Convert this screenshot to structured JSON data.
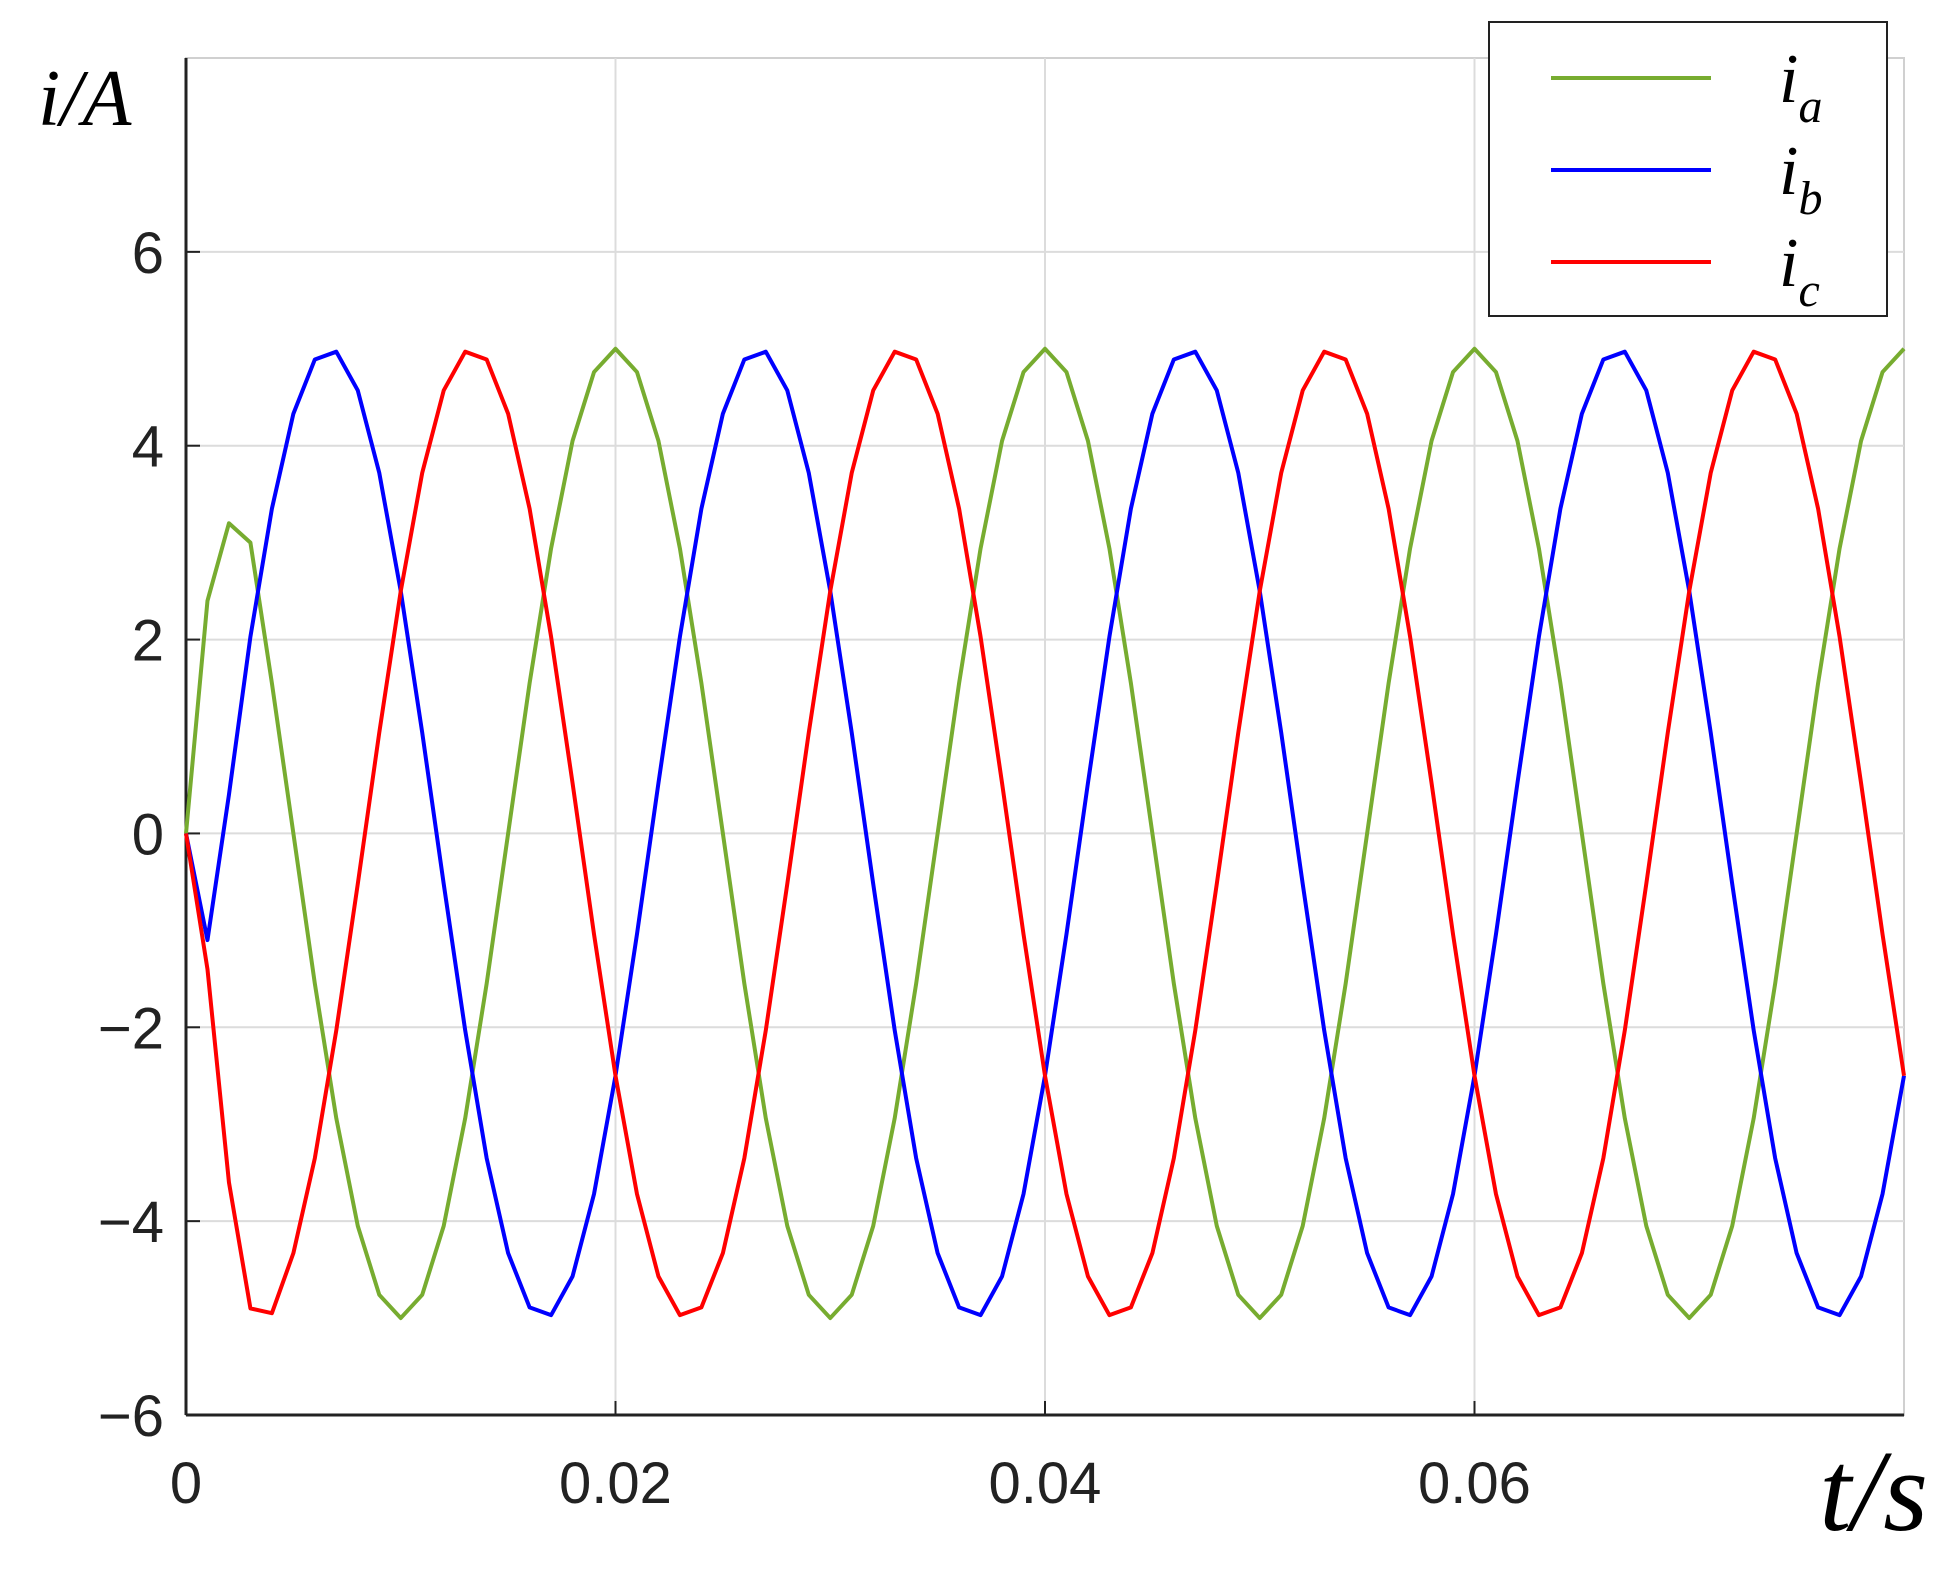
{
  "chart_data": {
    "type": "line",
    "xlabel": "t/s",
    "ylabel": "i/A",
    "x": [
      0,
      0.001,
      0.002,
      0.003,
      0.004,
      0.005,
      0.006,
      0.007,
      0.008,
      0.009,
      0.01,
      0.011,
      0.012,
      0.013,
      0.014,
      0.015,
      0.016,
      0.017,
      0.018,
      0.019,
      0.02,
      0.021,
      0.022,
      0.023,
      0.024,
      0.025,
      0.026,
      0.027,
      0.028,
      0.029,
      0.03,
      0.031,
      0.032,
      0.033,
      0.034,
      0.035,
      0.036,
      0.037,
      0.038,
      0.039,
      0.04,
      0.041,
      0.042,
      0.043,
      0.044,
      0.045,
      0.046,
      0.047,
      0.048,
      0.049,
      0.05,
      0.051,
      0.052,
      0.053,
      0.054,
      0.055,
      0.056,
      0.057,
      0.058,
      0.059,
      0.06,
      0.061,
      0.062,
      0.063,
      0.064,
      0.065,
      0.066,
      0.067,
      0.068,
      0.069,
      0.07,
      0.071,
      0.072,
      0.073,
      0.074,
      0.075,
      0.076,
      0.077,
      0.078,
      0.079,
      0.08
    ],
    "series": [
      {
        "name": "i_a",
        "color": "#77ac30",
        "values": [
          0,
          2.4,
          3.2,
          3.0,
          1.55,
          0,
          -1.55,
          -2.94,
          -4.05,
          -4.76,
          -5,
          -4.76,
          -4.05,
          -2.94,
          -1.55,
          0,
          1.55,
          2.94,
          4.05,
          4.76,
          5,
          4.76,
          4.05,
          2.94,
          1.55,
          0,
          -1.55,
          -2.94,
          -4.05,
          -4.76,
          -5,
          -4.76,
          -4.05,
          -2.94,
          -1.55,
          0,
          1.55,
          2.94,
          4.05,
          4.76,
          5,
          4.76,
          4.05,
          2.94,
          1.55,
          0,
          -1.55,
          -2.94,
          -4.05,
          -4.76,
          -5,
          -4.76,
          -4.05,
          -2.94,
          -1.55,
          0,
          1.55,
          2.94,
          4.05,
          4.76,
          5,
          4.76,
          4.05,
          2.94,
          1.55,
          0,
          -1.55,
          -2.94,
          -4.05,
          -4.76,
          -5,
          -4.76,
          -4.05,
          -2.94,
          -1.55,
          0,
          1.55,
          2.94,
          4.05,
          4.76,
          5
        ]
      },
      {
        "name": "i_b",
        "color": "#0000ff",
        "values": [
          0,
          -1.1,
          0.4,
          2.03,
          3.35,
          4.33,
          4.89,
          4.97,
          4.57,
          3.72,
          2.5,
          1.04,
          -0.52,
          -2.03,
          -3.35,
          -4.33,
          -4.89,
          -4.97,
          -4.57,
          -3.72,
          -2.5,
          -1.04,
          0.52,
          2.03,
          3.35,
          4.33,
          4.89,
          4.97,
          4.57,
          3.72,
          2.5,
          1.04,
          -0.52,
          -2.03,
          -3.35,
          -4.33,
          -4.89,
          -4.97,
          -4.57,
          -3.72,
          -2.5,
          -1.04,
          0.52,
          2.03,
          3.35,
          4.33,
          4.89,
          4.97,
          4.57,
          3.72,
          2.5,
          1.04,
          -0.52,
          -2.03,
          -3.35,
          -4.33,
          -4.89,
          -4.97,
          -4.57,
          -3.72,
          -2.5,
          -1.04,
          0.52,
          2.03,
          3.35,
          4.33,
          4.89,
          4.97,
          4.57,
          3.72,
          2.5,
          1.04,
          -0.52,
          -2.03,
          -3.35,
          -4.33,
          -4.89,
          -4.97,
          -4.57,
          -3.72,
          -2.5
        ]
      },
      {
        "name": "i_c",
        "color": "#ff0000",
        "values": [
          0,
          -1.4,
          -3.6,
          -4.9,
          -4.95,
          -4.33,
          -3.35,
          -2.03,
          -0.52,
          1.04,
          2.5,
          3.72,
          4.57,
          4.97,
          4.89,
          4.33,
          3.35,
          2.03,
          0.52,
          -1.04,
          -2.5,
          -3.72,
          -4.57,
          -4.97,
          -4.89,
          -4.33,
          -3.35,
          -2.03,
          -0.52,
          1.04,
          2.5,
          3.72,
          4.57,
          4.97,
          4.89,
          4.33,
          3.35,
          2.03,
          0.52,
          -1.04,
          -2.5,
          -3.72,
          -4.57,
          -4.97,
          -4.89,
          -4.33,
          -3.35,
          -2.03,
          -0.52,
          1.04,
          2.5,
          3.72,
          4.57,
          4.97,
          4.89,
          4.33,
          3.35,
          2.03,
          0.52,
          -1.04,
          -2.5,
          -3.72,
          -4.57,
          -4.97,
          -4.89,
          -4.33,
          -3.35,
          -2.03,
          -0.52,
          1.04,
          2.5,
          3.72,
          4.57,
          4.97,
          4.89,
          4.33,
          3.35,
          2.03,
          0.52,
          -1.04,
          -2.5
        ]
      }
    ],
    "xlim": [
      0,
      0.08
    ],
    "xticks": [
      0,
      0.02,
      0.04,
      0.06
    ],
    "ylim": [
      -6,
      8
    ],
    "yticks": [
      {
        "value": -6,
        "label": "−6"
      },
      {
        "value": -4,
        "label": "−4"
      },
      {
        "value": -2,
        "label": "−2"
      },
      0,
      2,
      4,
      6
    ],
    "grid": true,
    "legend": "upper right"
  }
}
